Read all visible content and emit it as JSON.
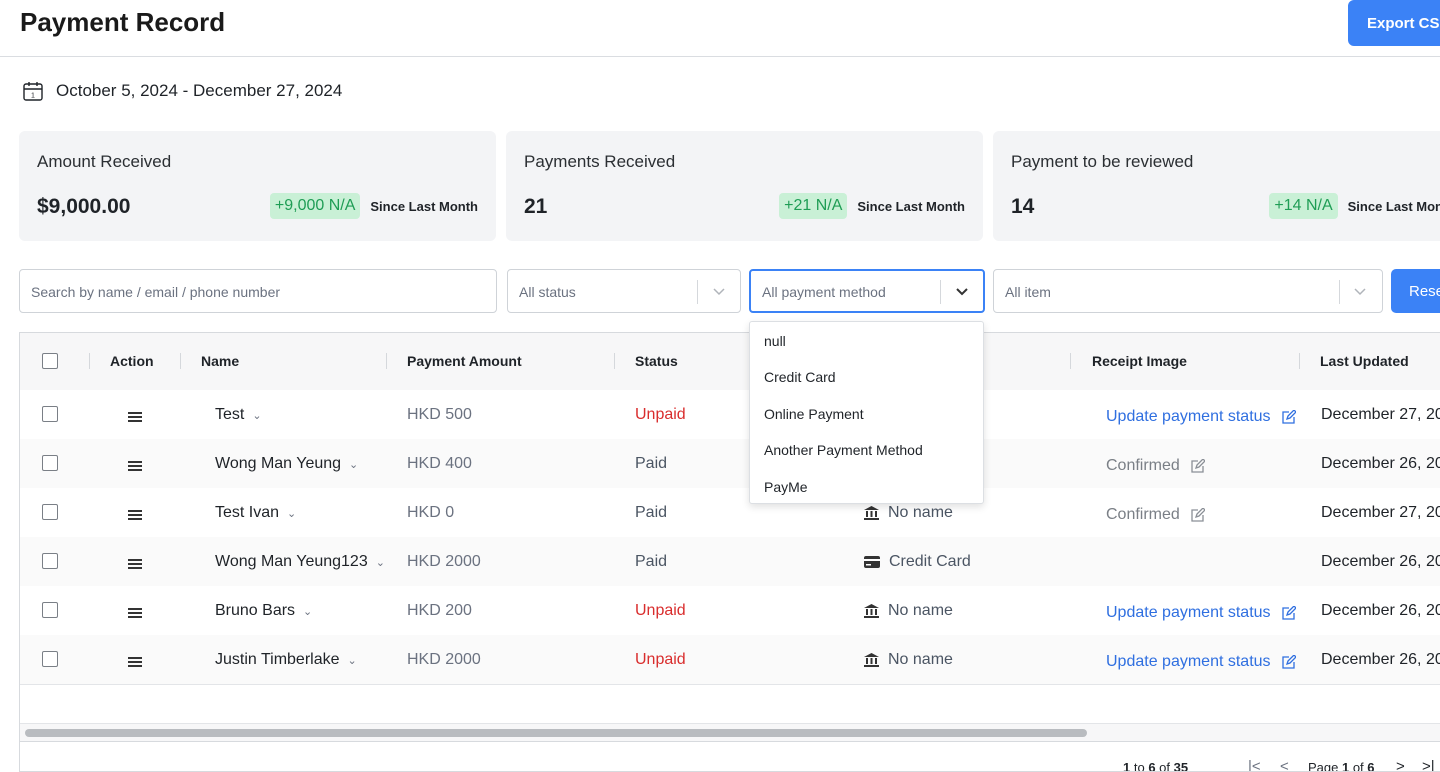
{
  "header": {
    "title": "Payment Record",
    "export_label": "Export CS"
  },
  "date_range": {
    "text": "October 5, 2024 - December 27, 2024",
    "icon": "calendar-icon"
  },
  "cards": [
    {
      "label": "Amount Received",
      "value": "$9,000.00",
      "badge": "+9,000 N/A",
      "since": "Since Last Month"
    },
    {
      "label": "Payments Received",
      "value": "21",
      "badge": "+21 N/A",
      "since": "Since Last Month"
    },
    {
      "label": "Payment to be reviewed",
      "value": "14",
      "badge": "+14 N/A",
      "since": "Since Last Mon"
    }
  ],
  "filters": {
    "search_placeholder": "Search by name / email / phone number",
    "status": "All status",
    "payment_method": "All payment method",
    "item": "All item",
    "reset_label": "Rese"
  },
  "table": {
    "headers": {
      "action": "Action",
      "name": "Name",
      "amount": "Payment Amount",
      "status": "Status",
      "receipt": "Receipt Image",
      "updated": "Last Updated"
    },
    "rows": [
      {
        "name": "Test",
        "amount": "HKD 500",
        "status": "Unpaid",
        "method": "",
        "receipt": "Update payment status",
        "updated": "December 27, 20"
      },
      {
        "name": "Wong Man Yeung",
        "amount": "HKD 400",
        "status": "Paid",
        "method": "",
        "receipt": "Confirmed",
        "updated": "December 26, 20"
      },
      {
        "name": "Test Ivan",
        "amount": "HKD 0",
        "status": "Paid",
        "method": "No name",
        "receipt": "Confirmed",
        "updated": "December 27, 20"
      },
      {
        "name": "Wong Man Yeung123",
        "amount": "HKD 2000",
        "status": "Paid",
        "method": "Credit Card",
        "receipt": "",
        "updated": "December 26, 20"
      },
      {
        "name": "Bruno Bars",
        "amount": "HKD 200",
        "status": "Unpaid",
        "method": "No name",
        "receipt": "Update payment status",
        "updated": "December 26, 20"
      },
      {
        "name": "Justin Timberlake",
        "amount": "HKD 2000",
        "status": "Unpaid",
        "method": "No name",
        "receipt": "Update payment status",
        "updated": "December 26, 20"
      }
    ]
  },
  "pagination": {
    "range_start": "1",
    "range_end": "6",
    "total": "35",
    "page": "1",
    "pages": "6",
    "to": " to ",
    "of": " of ",
    "page_label": "Page ",
    "of_label": " of "
  },
  "dropdown_options": [
    "null",
    "Credit Card",
    "Online Payment",
    "Another Payment Method",
    "PayMe"
  ],
  "colors": {
    "accent": "#3b82f6",
    "unpaid": "#d92d2d",
    "badge_bg": "#c9f0d6",
    "badge_text": "#1f9d55",
    "link": "#2f6fe0"
  }
}
